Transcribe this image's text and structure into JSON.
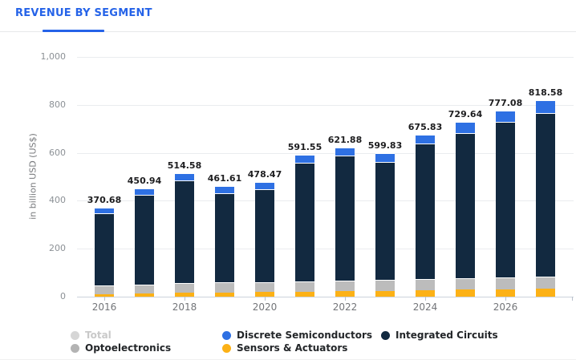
{
  "header": {
    "title": "REVENUE BY SEGMENT"
  },
  "chart_data": {
    "type": "bar",
    "stacked": true,
    "title": "REVENUE BY SEGMENT",
    "ylabel": "in billion USD (US$)",
    "ylim": [
      0,
      1000
    ],
    "yticks": [
      0,
      200,
      400,
      600,
      800,
      1000
    ],
    "grid": "horizontal",
    "legend_position": "bottom",
    "categories": [
      "2016",
      "2017",
      "2018",
      "2019",
      "2020",
      "2021",
      "2022",
      "2023",
      "2024",
      "2025",
      "2026",
      "2027"
    ],
    "xticks_shown": [
      "2016",
      "2018",
      "2020",
      "2022",
      "2024",
      "2026"
    ],
    "totals": [
      370.68,
      450.94,
      514.58,
      461.61,
      478.47,
      591.55,
      621.88,
      599.83,
      675.83,
      729.64,
      777.08,
      818.58
    ],
    "series": [
      {
        "name": "Sensors & Actuators",
        "color": "#fcb116",
        "values": [
          10,
          13,
          16,
          18,
          19,
          21,
          24,
          24,
          27,
          29,
          31,
          33
        ]
      },
      {
        "name": "Optoelectronics",
        "color": "#bcbcbc",
        "values": [
          37,
          38,
          40,
          41,
          41,
          42,
          43,
          47,
          48,
          49,
          51,
          52
        ]
      },
      {
        "name": "Integrated Circuits",
        "color": "#122940",
        "values": [
          301.68,
          372.94,
          429.58,
          371.61,
          387.47,
          494.55,
          522.88,
          489.83,
          563.83,
          605.64,
          647.08,
          681.58
        ]
      },
      {
        "name": "Discrete Semiconductors",
        "color": "#2e70e3",
        "values": [
          22,
          27,
          29,
          31,
          31,
          34,
          32,
          39,
          37,
          46,
          48,
          52
        ]
      }
    ]
  },
  "legend": {
    "items": [
      {
        "label": "Total",
        "color": "#d6d6d6",
        "active": false,
        "col": 0,
        "row": 0
      },
      {
        "label": "Optoelectronics",
        "color": "#b3b3b3",
        "active": true,
        "col": 0,
        "row": 1
      },
      {
        "label": "Discrete Semiconductors",
        "color": "#2e70e3",
        "active": true,
        "col": 1,
        "row": 0
      },
      {
        "label": "Sensors & Actuators",
        "color": "#fcb116",
        "active": true,
        "col": 1,
        "row": 1
      },
      {
        "label": "Integrated Circuits",
        "color": "#122940",
        "active": true,
        "col": 2,
        "row": 0
      }
    ]
  }
}
